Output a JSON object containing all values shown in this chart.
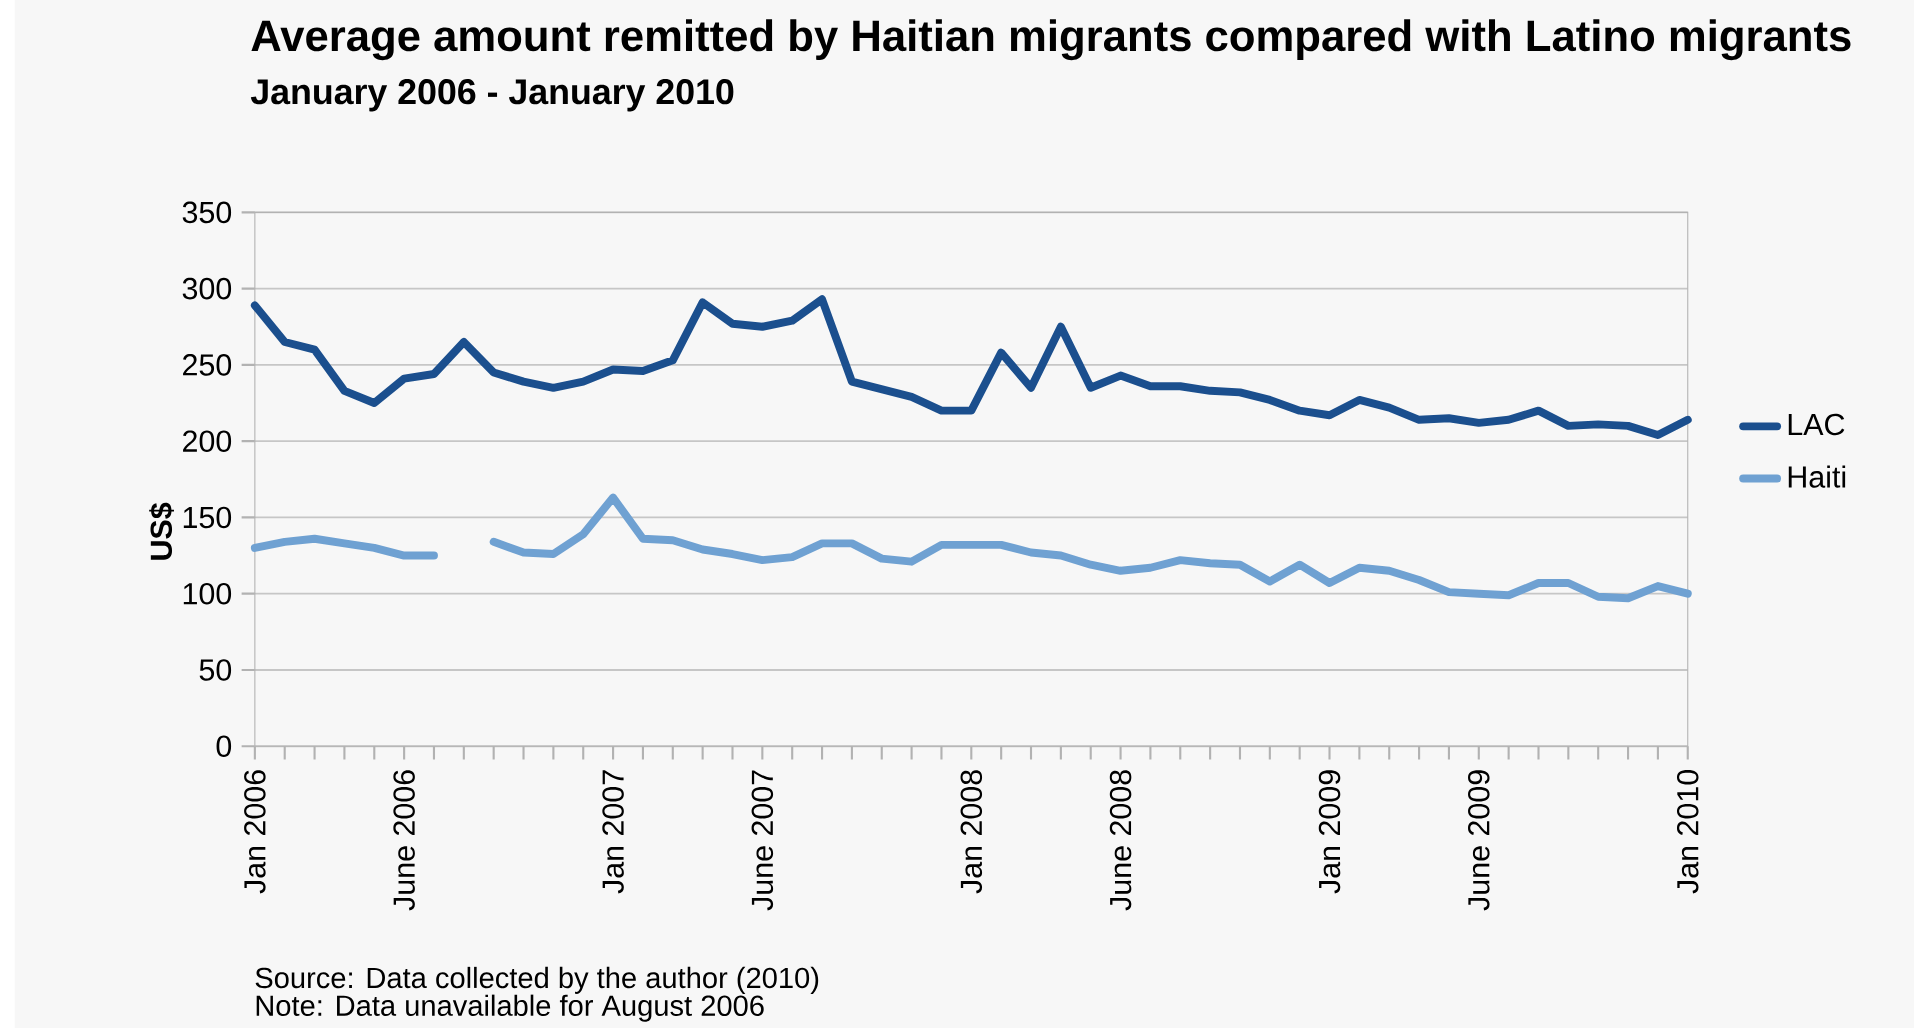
{
  "chart_data": {
    "type": "line",
    "title": "Average amount remitted by Haitian migrants compared with Latino migrants",
    "subtitle": "January 2006 - January 2010",
    "ylabel": "US$",
    "categories": [
      "Jan 2006",
      null,
      null,
      null,
      null,
      "June 2006",
      null,
      null,
      null,
      null,
      null,
      null,
      "Jan 2007",
      null,
      null,
      null,
      null,
      "June 2007",
      null,
      null,
      null,
      null,
      null,
      null,
      "Jan 2008",
      null,
      null,
      null,
      null,
      "June 2008",
      null,
      null,
      null,
      null,
      null,
      null,
      "Jan 2009",
      null,
      null,
      null,
      null,
      "June 2009",
      null,
      null,
      null,
      null,
      null,
      null,
      "Jan 2010"
    ],
    "series": [
      {
        "name": "LAC",
        "color": "#1b4f8e",
        "values": [
          289,
          265,
          260,
          233,
          225,
          241,
          244,
          265,
          245,
          239,
          235,
          239,
          247,
          246,
          253,
          291,
          277,
          275,
          279,
          293,
          239,
          234,
          229,
          220,
          220,
          258,
          235,
          275,
          235,
          243,
          236,
          236,
          233,
          232,
          227,
          220,
          217,
          227,
          222,
          214,
          215,
          212,
          214,
          220,
          210,
          211,
          210,
          204,
          214
        ]
      },
      {
        "name": "Haiti",
        "color": "#6fa1d2",
        "values": [
          130,
          134,
          136,
          133,
          130,
          125,
          125,
          null,
          134,
          127,
          126,
          139,
          163,
          136,
          135,
          129,
          126,
          122,
          124,
          133,
          133,
          123,
          121,
          132,
          132,
          132,
          127,
          125,
          119,
          115,
          117,
          122,
          120,
          119,
          108,
          119,
          107,
          117,
          115,
          109,
          101,
          100,
          99,
          107,
          107,
          98,
          97,
          105,
          100
        ]
      }
    ],
    "ylim": [
      0,
      350
    ],
    "yticks": [
      0,
      50,
      100,
      150,
      200,
      250,
      300,
      350
    ],
    "grid": "y",
    "legend": "right",
    "line_style": "solid",
    "annotations": [
      "Source: Data collected by the author (2010)",
      "Note: Data unavailable for August 2006"
    ]
  }
}
